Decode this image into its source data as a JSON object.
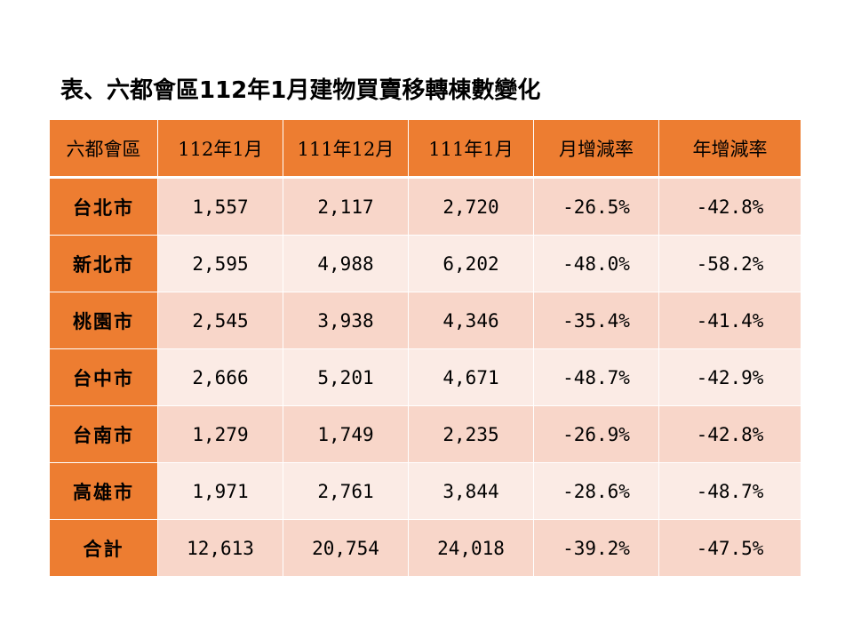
{
  "title": "表、六都會區112年1月建物買賣移轉棟數變化",
  "table": {
    "headers": [
      "六都會區",
      "112年1月",
      "111年12月",
      "111年1月",
      "月增減率",
      "年增減率"
    ],
    "rows": [
      {
        "city": "台北市",
        "values": [
          "1,557",
          "2,117",
          "2,720",
          "-26.5%",
          "-42.8%"
        ]
      },
      {
        "city": "新北市",
        "values": [
          "2,595",
          "4,988",
          "6,202",
          "-48.0%",
          "-58.2%"
        ]
      },
      {
        "city": "桃園市",
        "values": [
          "2,545",
          "3,938",
          "4,346",
          "-35.4%",
          "-41.4%"
        ]
      },
      {
        "city": "台中市",
        "values": [
          "2,666",
          "5,201",
          "4,671",
          "-48.7%",
          "-42.9%"
        ]
      },
      {
        "city": "台南市",
        "values": [
          "1,279",
          "1,749",
          "2,235",
          "-26.9%",
          "-42.8%"
        ]
      },
      {
        "city": "高雄市",
        "values": [
          "1,971",
          "2,761",
          "3,844",
          "-28.6%",
          "-48.7%"
        ]
      },
      {
        "city": "合計",
        "values": [
          "12,613",
          "20,754",
          "24,018",
          "-39.2%",
          "-47.5%"
        ]
      }
    ]
  },
  "colors": {
    "header_bg": "#ed7d31",
    "row_odd_bg": "#f8d6c9",
    "row_even_bg": "#fbebe5"
  }
}
